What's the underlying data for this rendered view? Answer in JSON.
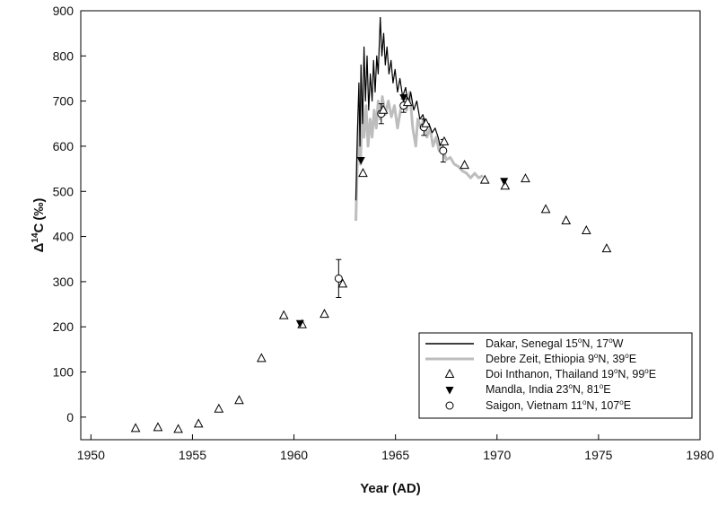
{
  "chart_data": {
    "type": "scatter",
    "title": "",
    "xlabel": "Year (AD)",
    "ylabel": "Δ14C (‰)",
    "ylabel_parts": {
      "delta": "Δ",
      "sup": "14",
      "letter": "C",
      "open": "(",
      "unit": "‰",
      "close": ")"
    },
    "xlim": [
      1949.5,
      1980
    ],
    "ylim": [
      -50,
      900
    ],
    "xticks": [
      1950,
      1955,
      1960,
      1965,
      1970,
      1975,
      1980
    ],
    "yticks": [
      0,
      100,
      200,
      300,
      400,
      500,
      600,
      700,
      800,
      900
    ],
    "grid": false,
    "legend_position": "bottom-right",
    "series": [
      {
        "name": "Dakar, Senegal 15°N, 17°W",
        "legend_parts": {
          "text1": "Dakar, Senegal 15",
          "sup1": "o",
          "text2": "N, 17",
          "sup2": "o",
          "text3": "W"
        },
        "marker": "line-black",
        "points": [
          [
            1963.05,
            480
          ],
          [
            1963.12,
            620
          ],
          [
            1963.2,
            740
          ],
          [
            1963.25,
            600
          ],
          [
            1963.3,
            780
          ],
          [
            1963.38,
            650
          ],
          [
            1963.45,
            820
          ],
          [
            1963.52,
            700
          ],
          [
            1963.6,
            800
          ],
          [
            1963.68,
            680
          ],
          [
            1963.76,
            760
          ],
          [
            1963.85,
            700
          ],
          [
            1963.92,
            790
          ],
          [
            1964.0,
            720
          ],
          [
            1964.08,
            800
          ],
          [
            1964.15,
            760
          ],
          [
            1964.25,
            885
          ],
          [
            1964.33,
            800
          ],
          [
            1964.42,
            850
          ],
          [
            1964.5,
            780
          ],
          [
            1964.58,
            820
          ],
          [
            1964.68,
            760
          ],
          [
            1964.78,
            790
          ],
          [
            1964.88,
            740
          ],
          [
            1964.98,
            770
          ],
          [
            1965.1,
            720
          ],
          [
            1965.22,
            750
          ],
          [
            1965.35,
            710
          ],
          [
            1965.5,
            730
          ],
          [
            1965.62,
            690
          ],
          [
            1965.75,
            720
          ],
          [
            1965.9,
            680
          ],
          [
            1966.05,
            700
          ],
          [
            1966.2,
            660
          ],
          [
            1966.35,
            670
          ],
          [
            1966.5,
            640
          ],
          [
            1966.65,
            650
          ],
          [
            1966.8,
            630
          ],
          [
            1966.95,
            640
          ],
          [
            1967.1,
            620
          ],
          [
            1967.2,
            600
          ]
        ]
      },
      {
        "name": "Debre Zeit, Ethiopia 9°N, 39°E",
        "legend_parts": {
          "text1": "Debre Zeit, Ethiopia 9",
          "sup1": "o",
          "text2": "N, 39",
          "sup2": "o",
          "text3": "E"
        },
        "marker": "line-gray",
        "points": [
          [
            1963.05,
            435
          ],
          [
            1963.12,
            560
          ],
          [
            1963.2,
            680
          ],
          [
            1963.28,
            560
          ],
          [
            1963.36,
            700
          ],
          [
            1963.45,
            620
          ],
          [
            1963.55,
            690
          ],
          [
            1963.65,
            600
          ],
          [
            1963.75,
            660
          ],
          [
            1963.85,
            620
          ],
          [
            1963.95,
            680
          ],
          [
            1964.05,
            640
          ],
          [
            1964.15,
            700
          ],
          [
            1964.25,
            660
          ],
          [
            1964.35,
            710
          ],
          [
            1964.5,
            670
          ],
          [
            1964.65,
            700
          ],
          [
            1964.8,
            665
          ],
          [
            1964.95,
            690
          ],
          [
            1965.1,
            640
          ],
          [
            1965.25,
            680
          ],
          [
            1965.4,
            700
          ],
          [
            1965.55,
            680
          ],
          [
            1965.7,
            720
          ],
          [
            1965.85,
            640
          ],
          [
            1966.0,
            600
          ],
          [
            1966.1,
            660
          ],
          [
            1966.25,
            640
          ],
          [
            1966.4,
            660
          ],
          [
            1966.55,
            620
          ],
          [
            1966.7,
            640
          ],
          [
            1966.85,
            600
          ],
          [
            1967.0,
            620
          ],
          [
            1967.15,
            590
          ],
          [
            1967.3,
            600
          ],
          [
            1967.5,
            570
          ],
          [
            1967.7,
            575
          ],
          [
            1967.9,
            560
          ],
          [
            1968.1,
            555
          ],
          [
            1968.3,
            545
          ],
          [
            1968.5,
            540
          ],
          [
            1968.7,
            530
          ],
          [
            1968.9,
            540
          ],
          [
            1969.1,
            530
          ],
          [
            1969.3,
            535
          ]
        ]
      },
      {
        "name": "Doi Inthanon, Thailand 19°N, 99°E",
        "legend_parts": {
          "text1": "Doi Inthanon, Thailand 19",
          "sup1": "o",
          "text2": "N, 99",
          "sup2": "o",
          "text3": "E"
        },
        "marker": "open-triangle",
        "points": [
          [
            1952.2,
            -25
          ],
          [
            1953.3,
            -23
          ],
          [
            1954.3,
            -27
          ],
          [
            1955.3,
            -15
          ],
          [
            1956.3,
            18
          ],
          [
            1957.3,
            37
          ],
          [
            1958.4,
            130
          ],
          [
            1959.5,
            225
          ],
          [
            1960.4,
            205
          ],
          [
            1961.5,
            228
          ],
          [
            1962.4,
            295
          ],
          [
            1963.4,
            540
          ],
          [
            1964.4,
            680
          ],
          [
            1965.6,
            697
          ],
          [
            1966.5,
            650
          ],
          [
            1967.4,
            610
          ],
          [
            1968.4,
            558
          ],
          [
            1969.4,
            525
          ],
          [
            1970.4,
            512
          ],
          [
            1971.4,
            528
          ],
          [
            1972.4,
            460
          ],
          [
            1973.4,
            435
          ],
          [
            1974.4,
            413
          ],
          [
            1975.4,
            373
          ]
        ]
      },
      {
        "name": "Mandla, India 23°N, 81°E",
        "legend_parts": {
          "text1": "Mandla, India 23",
          "sup1": "o",
          "text2": "N, 81",
          "sup2": "o",
          "text3": "E"
        },
        "marker": "filled-triangle-down",
        "points": [
          [
            1960.3,
            207
          ],
          [
            1963.3,
            568
          ],
          [
            1965.4,
            707
          ],
          [
            1970.35,
            522
          ]
        ]
      },
      {
        "name": "Saigon, Vietnam 11°N, 107°E",
        "legend_parts": {
          "text1": "Saigon, Vietnam 11",
          "sup1": "o",
          "text2": "N, 107",
          "sup2": "o",
          "text3": "E"
        },
        "marker": "open-circle",
        "points": [
          [
            1962.2,
            307
          ],
          [
            1964.3,
            672
          ],
          [
            1965.4,
            690
          ],
          [
            1966.4,
            642
          ],
          [
            1967.35,
            590
          ]
        ],
        "error": [
          42,
          22,
          15,
          18,
          25
        ]
      }
    ]
  }
}
